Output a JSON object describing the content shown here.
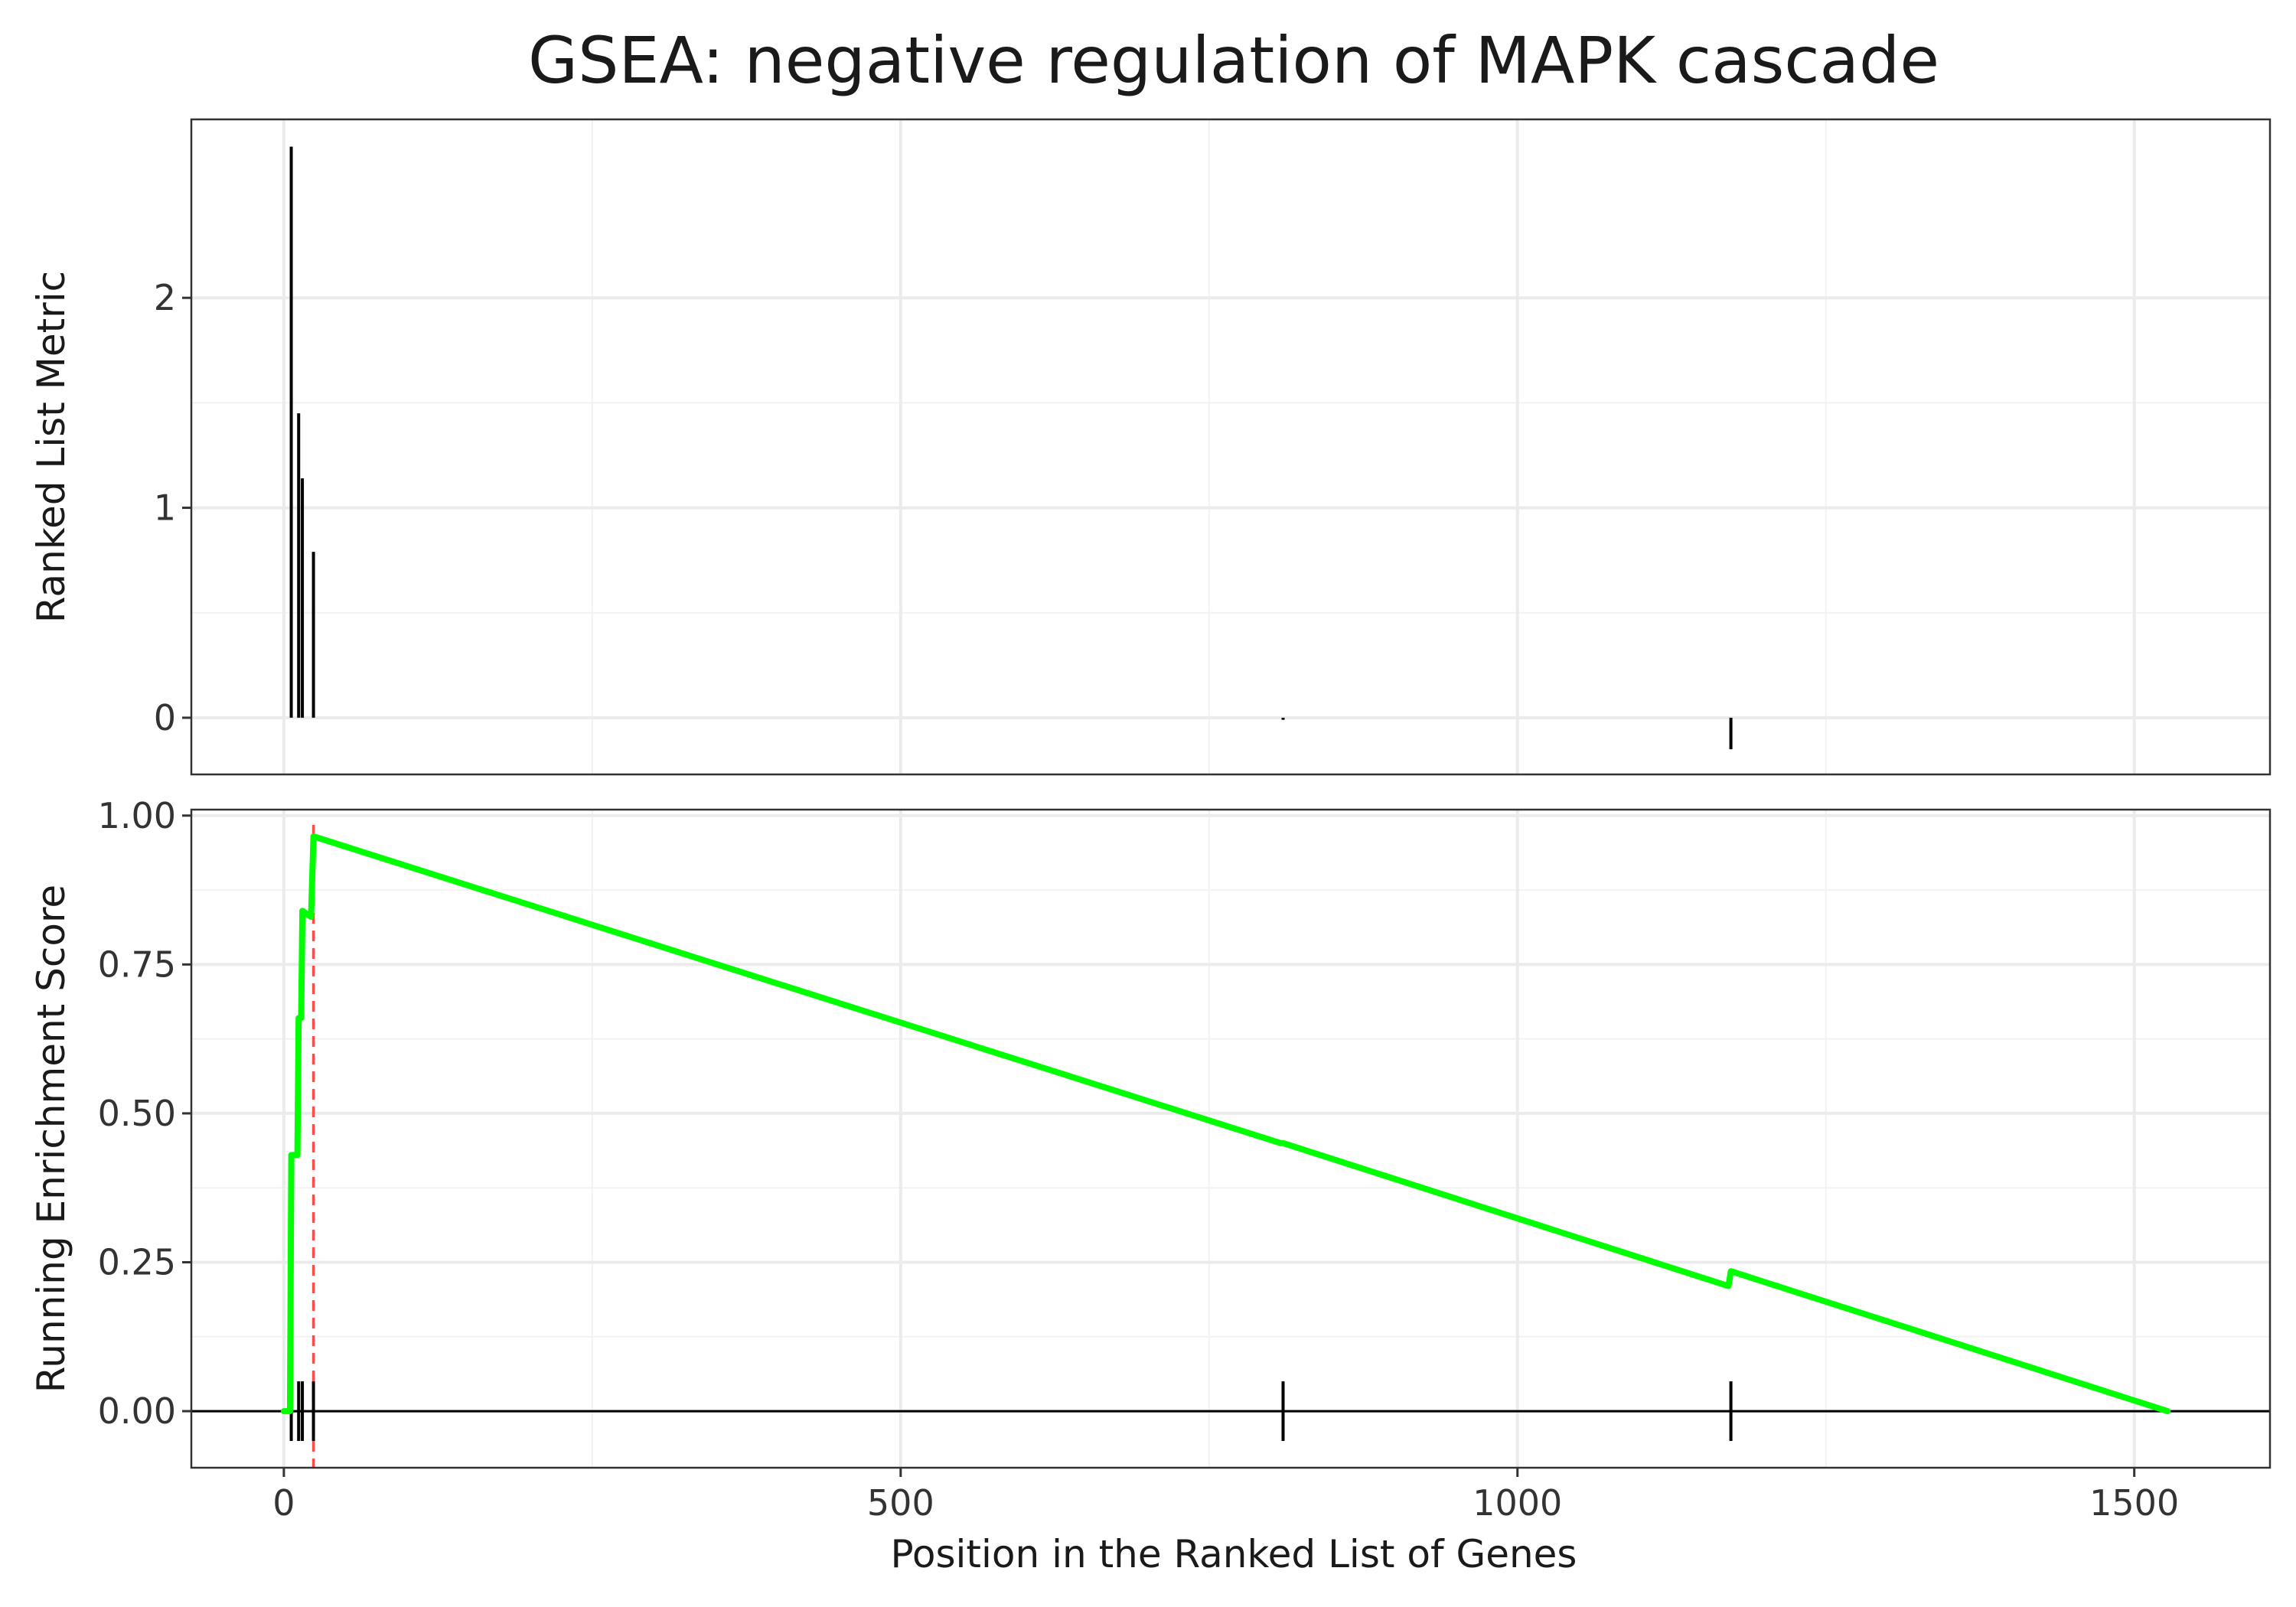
{
  "chart_data": {
    "type": "line",
    "title": "GSEA: negative regulation of MAPK cascade",
    "xlabel": "Position in the Ranked List of Genes",
    "xlim": [
      -75,
      1610
    ],
    "xticks": [
      0,
      500,
      1000,
      1500
    ],
    "xtick_labels": [
      "0",
      "500",
      "1000",
      "1500"
    ],
    "grid": true,
    "panels": [
      {
        "name": "ranked-list",
        "ylabel": "Ranked List Metric",
        "ylim": [
          -0.27,
          2.85
        ],
        "yticks": [
          0,
          1,
          2
        ],
        "ytick_labels": [
          "0",
          "1",
          "2"
        ],
        "bars": [
          {
            "x": 6,
            "value": 2.72
          },
          {
            "x": 12,
            "value": 1.45
          },
          {
            "x": 15,
            "value": 1.14
          },
          {
            "x": 24,
            "value": 0.79
          },
          {
            "x": 810,
            "value": -0.01
          },
          {
            "x": 1173,
            "value": -0.15
          }
        ]
      },
      {
        "name": "running-enrichment",
        "ylabel": "Running Enrichment Score",
        "ylim": [
          -0.095,
          1.01
        ],
        "yticks": [
          0,
          0.25,
          0.5,
          0.75,
          1.0
        ],
        "ytick_labels": [
          "0.00",
          "0.25",
          "0.50",
          "0.75",
          "1.00"
        ],
        "series": [
          {
            "color": "#00ff00",
            "x": [
              0,
              5,
              6,
              11,
              12,
              14,
              15,
              22,
              24,
              808,
              810,
              1171,
              1173,
              1527
            ],
            "y": [
              0.0,
              0.0,
              0.43,
              0.43,
              0.66,
              0.66,
              0.84,
              0.83,
              0.965,
              0.45,
              0.45,
              0.21,
              0.235,
              0.0
            ]
          }
        ],
        "gene_hits_x": [
          6,
          12,
          15,
          24,
          810,
          1173
        ],
        "max_es_position": 24,
        "max_es_line_color": "#ff4d4d",
        "zero_line": true
      }
    ]
  }
}
